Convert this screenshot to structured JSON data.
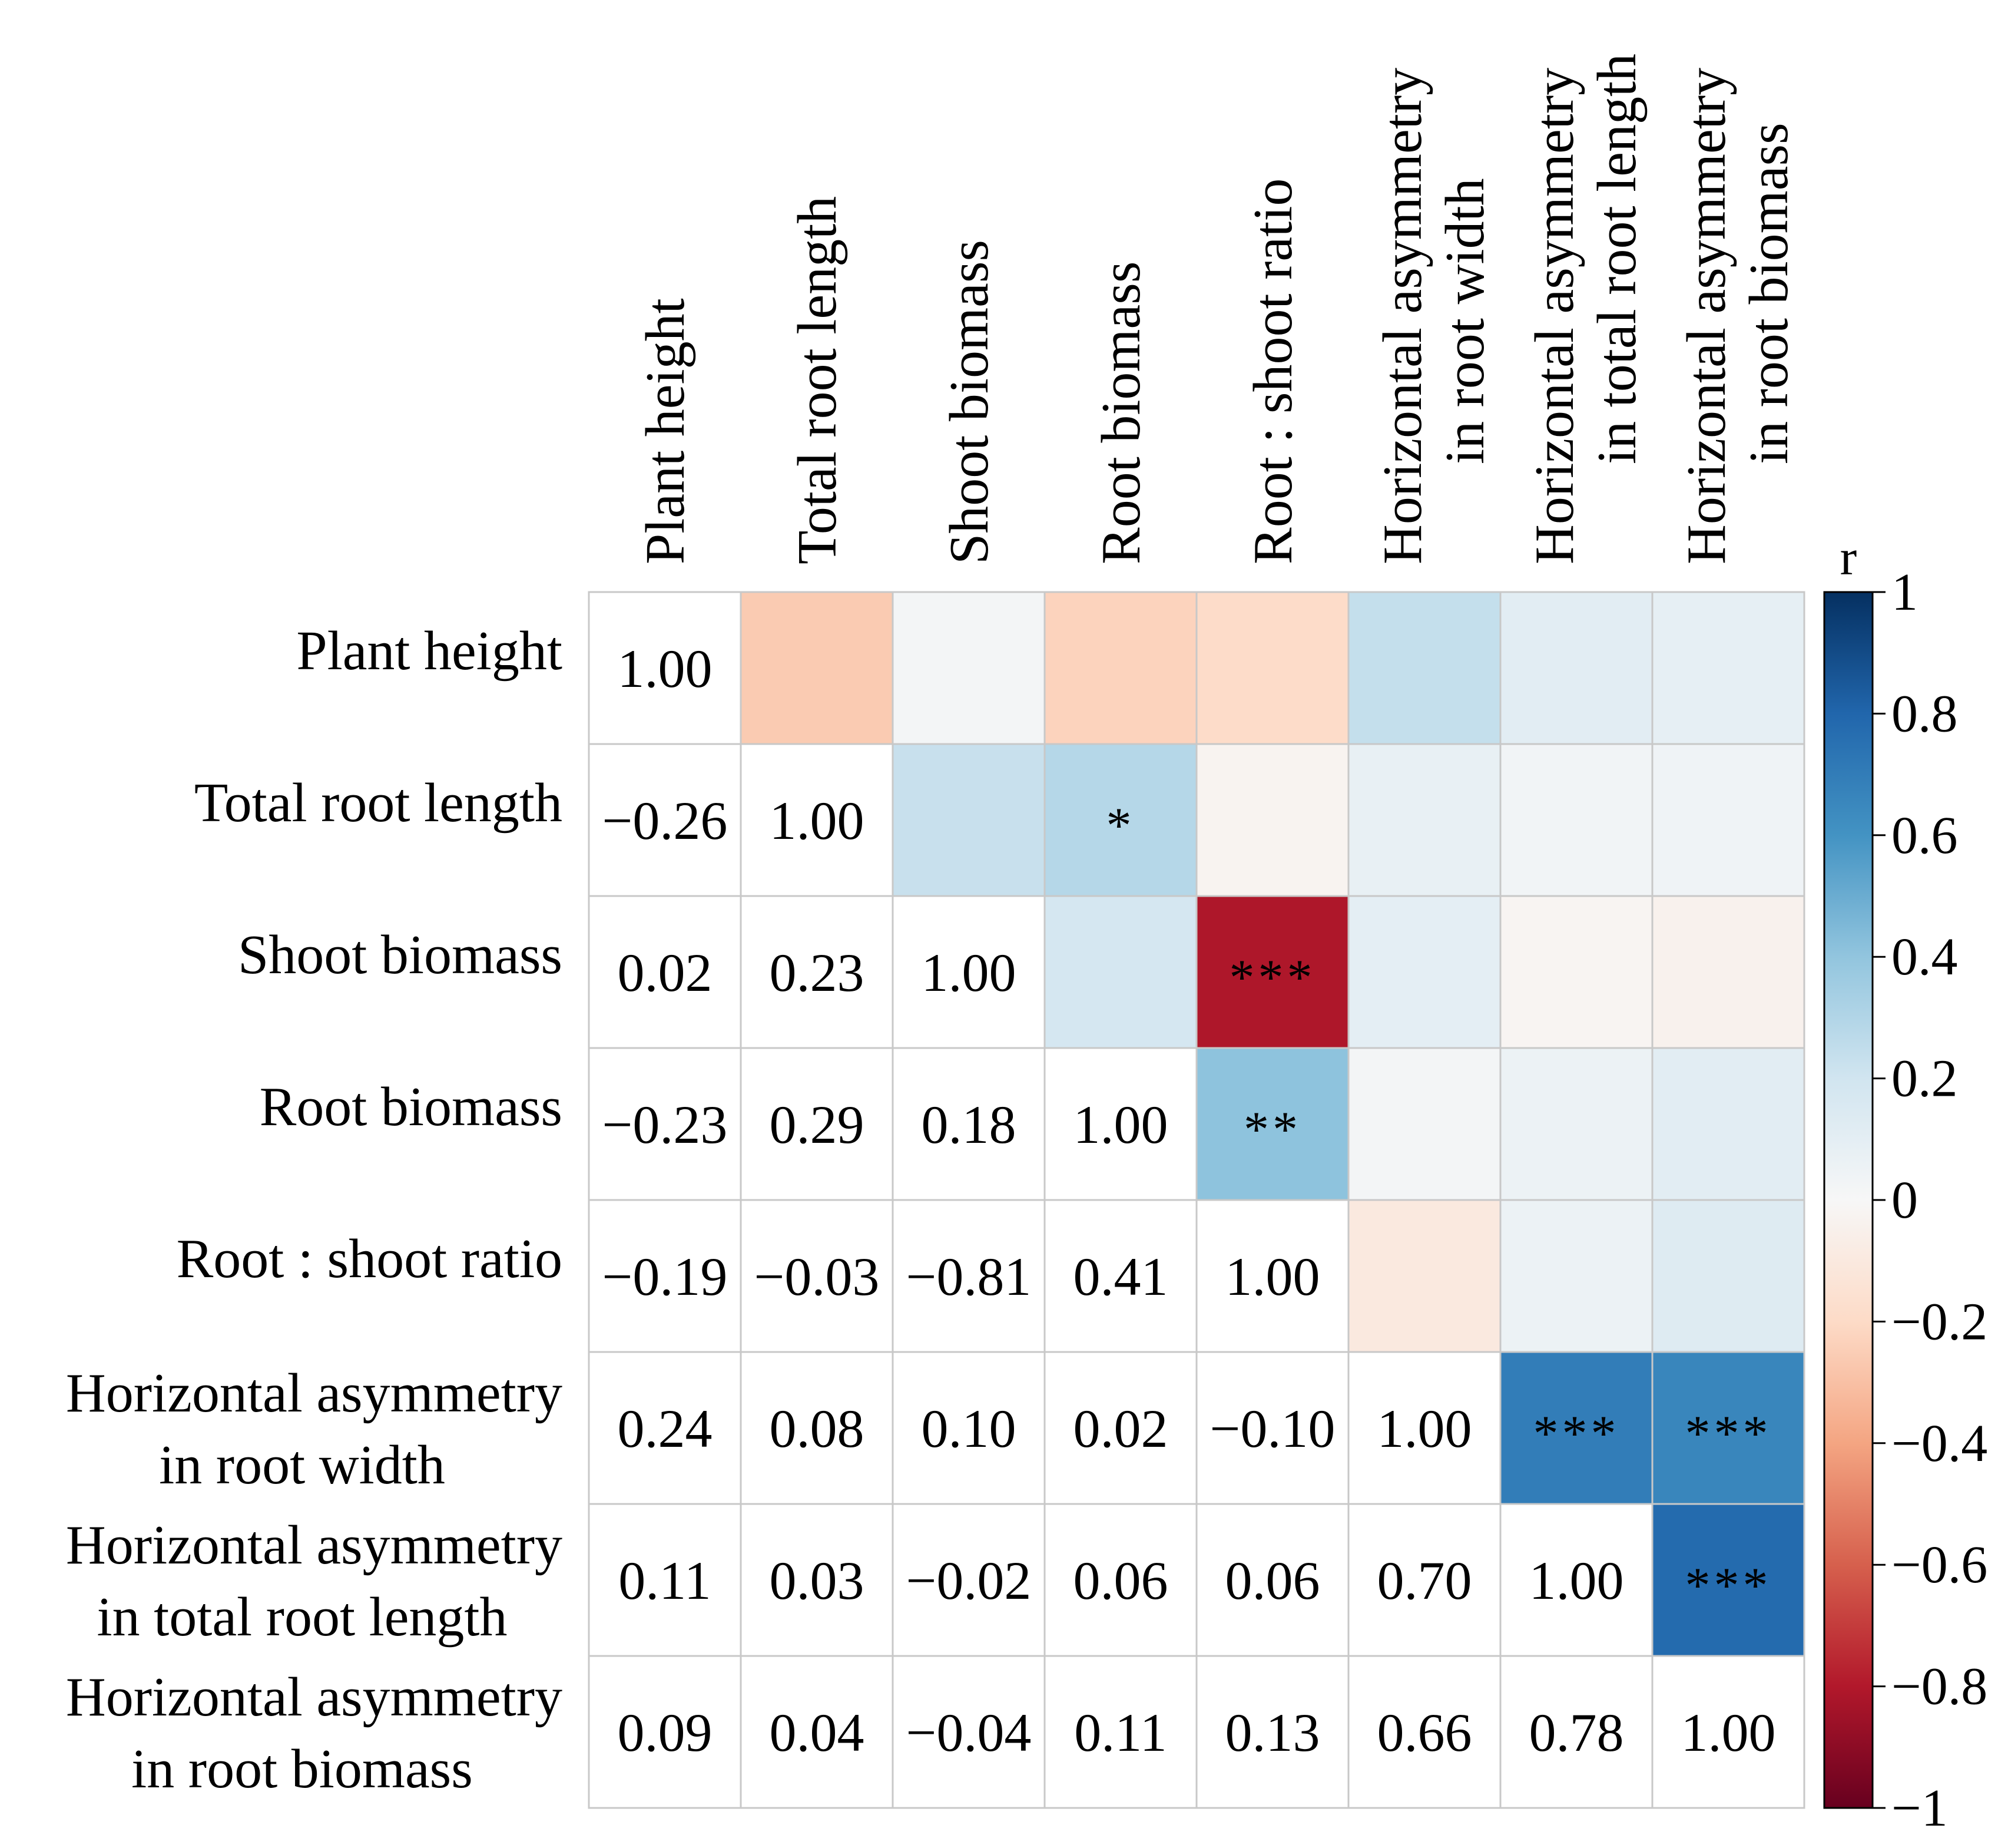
{
  "chart_data": {
    "type": "heatmap",
    "title": "",
    "variables": [
      "Plant height",
      "Total root length",
      "Shoot biomass",
      "Root biomass",
      "Root : shoot ratio",
      "Horizontal asymmetry in root width",
      "Horizontal asymmetry in total root length",
      "Horizontal asymmetry in root biomass"
    ],
    "row_labels": [
      [
        "Plant height"
      ],
      [
        "Total root length"
      ],
      [
        "Shoot biomass"
      ],
      [
        "Root biomass"
      ],
      [
        "Root : shoot ratio"
      ],
      [
        "Horizontal asymmetry",
        "in root width"
      ],
      [
        "Horizontal asymmetry",
        "in total root length"
      ],
      [
        "Horizontal asymmetry",
        "in root biomass"
      ]
    ],
    "col_labels": [
      [
        "Plant height"
      ],
      [
        "Total root length"
      ],
      [
        "Shoot biomass"
      ],
      [
        "Root biomass"
      ],
      [
        "Root : shoot ratio"
      ],
      [
        "Horizontal asymmetry",
        "in root width"
      ],
      [
        "Horizontal asymmetry",
        "in total root length"
      ],
      [
        "Horizontal asymmetry",
        "in root biomass"
      ]
    ],
    "correlations": [
      [
        1.0,
        -0.26,
        0.02,
        -0.23,
        -0.19,
        0.24,
        0.11,
        0.09
      ],
      [
        -0.26,
        1.0,
        0.23,
        0.29,
        -0.03,
        0.08,
        0.03,
        0.04
      ],
      [
        0.02,
        0.23,
        1.0,
        0.18,
        -0.81,
        0.1,
        -0.02,
        -0.04
      ],
      [
        -0.23,
        0.29,
        0.18,
        1.0,
        0.41,
        0.02,
        0.06,
        0.11
      ],
      [
        -0.19,
        -0.03,
        -0.81,
        0.41,
        1.0,
        -0.1,
        0.06,
        0.13
      ],
      [
        0.24,
        0.08,
        0.1,
        0.02,
        -0.1,
        1.0,
        0.7,
        0.66
      ],
      [
        0.11,
        0.03,
        -0.02,
        0.06,
        0.06,
        0.7,
        1.0,
        0.78
      ],
      [
        0.09,
        0.04,
        -0.04,
        0.11,
        0.13,
        0.66,
        0.78,
        1.0
      ]
    ],
    "lower_triangle_text": [
      [
        "1.00",
        "",
        "",
        "",
        "",
        "",
        "",
        ""
      ],
      [
        "−0.26",
        "1.00",
        "",
        "",
        "",
        "",
        "",
        ""
      ],
      [
        "0.02",
        "0.23",
        "1.00",
        "",
        "",
        "",
        "",
        ""
      ],
      [
        "−0.23",
        "0.29",
        "0.18",
        "1.00",
        "",
        "",
        "",
        ""
      ],
      [
        "−0.19",
        "−0.03",
        "−0.81",
        "0.41",
        "1.00",
        "",
        "",
        ""
      ],
      [
        "0.24",
        "0.08",
        "0.10",
        "0.02",
        "−0.10",
        "1.00",
        "",
        ""
      ],
      [
        "0.11",
        "0.03",
        "−0.02",
        "0.06",
        "0.06",
        "0.70",
        "1.00",
        ""
      ],
      [
        "0.09",
        "0.04",
        "−0.04",
        "0.11",
        "0.13",
        "0.66",
        "0.78",
        "1.00"
      ]
    ],
    "significance_upper": [
      [
        "",
        "",
        "",
        "",
        "",
        "",
        "",
        ""
      ],
      [
        "",
        "",
        "",
        "*",
        "",
        "",
        "",
        ""
      ],
      [
        "",
        "",
        "",
        "",
        "***",
        "",
        "",
        ""
      ],
      [
        "",
        "",
        "",
        "",
        "**",
        "",
        "",
        ""
      ],
      [
        "",
        "",
        "",
        "",
        "",
        "",
        "",
        ""
      ],
      [
        "",
        "",
        "",
        "",
        "",
        "",
        "***",
        "***"
      ],
      [
        "",
        "",
        "",
        "",
        "",
        "",
        "",
        "***"
      ],
      [
        "",
        "",
        "",
        "",
        "",
        "",
        "",
        ""
      ]
    ],
    "lower_triangle": "values as text",
    "upper_triangle": "colored by r with significance stars",
    "colorbar": {
      "title": "r",
      "range": [
        -1,
        1
      ],
      "ticks": [
        1,
        0.8,
        0.6,
        0.4,
        0.2,
        0,
        -0.2,
        -0.4,
        -0.6,
        -0.8,
        -1
      ],
      "tick_labels": [
        "1",
        "0.8",
        "0.6",
        "0.4",
        "0.2",
        "0",
        "−0.2",
        "−0.4",
        "−0.6",
        "−0.8",
        "−1"
      ],
      "colormap": "RdBu",
      "color_stops": [
        [
          -1.0,
          "#67001f"
        ],
        [
          -0.8,
          "#b2182b"
        ],
        [
          -0.6,
          "#d6604d"
        ],
        [
          -0.4,
          "#f4a582"
        ],
        [
          -0.2,
          "#fddbc7"
        ],
        [
          0.0,
          "#f7f7f7"
        ],
        [
          0.2,
          "#d1e5f0"
        ],
        [
          0.4,
          "#92c5de"
        ],
        [
          0.6,
          "#4393c3"
        ],
        [
          0.8,
          "#2166ac"
        ],
        [
          1.0,
          "#053061"
        ]
      ]
    },
    "grid_color": "#c8c8c8"
  }
}
